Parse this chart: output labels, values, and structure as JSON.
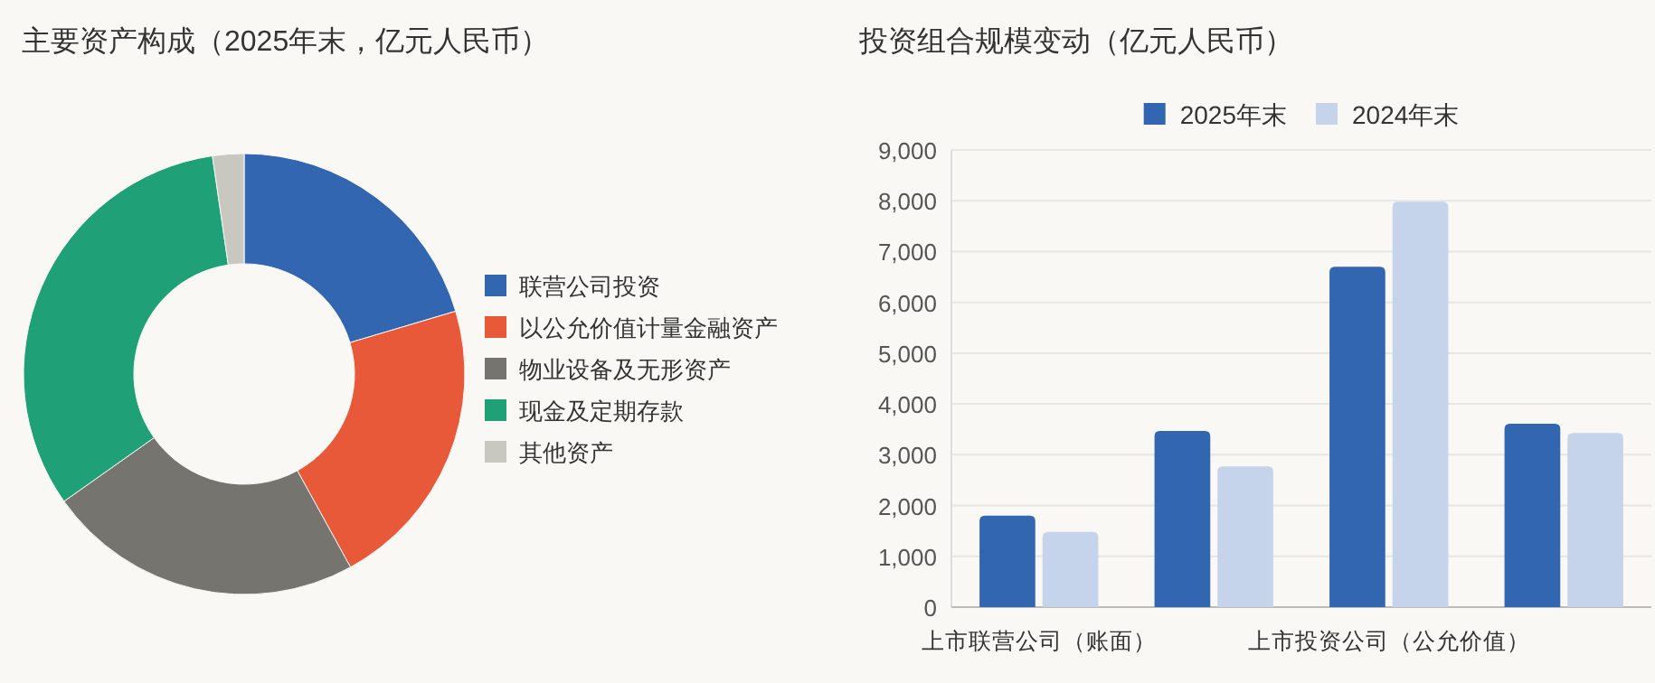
{
  "chart_data": [
    {
      "type": "donut",
      "title": "主要资产构成（2025年末，亿元人民币）",
      "categories": [
        "联营公司投资",
        "以公允价值计量金融资产",
        "物业设备及无形资产",
        "现金及定期存款",
        "其他资产"
      ],
      "values": [
        20.4,
        21.6,
        23.2,
        32.5,
        2.3
      ],
      "colors": [
        "#3366b0",
        "#e8593a",
        "#76746f",
        "#1fa077",
        "#c8c8c0"
      ],
      "legend": "right"
    },
    {
      "type": "bar",
      "title": "投资组合规模变动（亿元人民币）",
      "categories": [
        "上市联营公司（账面）",
        null,
        "上市投资公司（公允价值）",
        null
      ],
      "series": [
        {
          "name": "2025年末",
          "color": "#3366b0",
          "values": [
            1800,
            3470,
            6700,
            3610
          ]
        },
        {
          "name": "2024年末",
          "color": "#c5d4ea",
          "values": [
            1480,
            2770,
            7980,
            3430
          ]
        }
      ],
      "ylim": [
        0,
        9000
      ],
      "yticks": [
        0,
        {
          "value": 1000,
          "label": "1,000"
        },
        {
          "value": 2000,
          "label": "2,000"
        },
        {
          "value": 3000,
          "label": "3,000"
        },
        {
          "value": 4000,
          "label": "4,000"
        },
        {
          "value": 5000,
          "label": "5,000"
        },
        {
          "value": 6000,
          "label": "6,000"
        },
        {
          "value": 7000,
          "label": "7,000"
        },
        {
          "value": 8000,
          "label": "8,000"
        },
        {
          "value": 9000,
          "label": "9,000"
        }
      ],
      "grid": "y",
      "legend": "top"
    }
  ]
}
